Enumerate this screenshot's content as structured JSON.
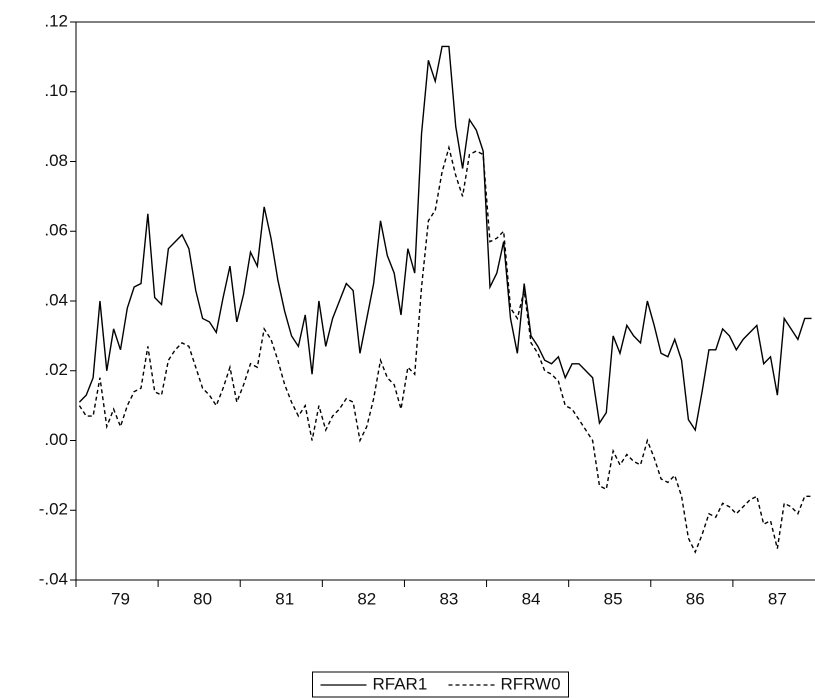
{
  "chart_data": {
    "type": "line",
    "categories": [
      null,
      null,
      null,
      null,
      null,
      null,
      "79",
      null,
      null,
      null,
      null,
      null,
      null,
      null,
      null,
      null,
      null,
      null,
      "80",
      null,
      null,
      null,
      null,
      null,
      null,
      null,
      null,
      null,
      null,
      null,
      "81",
      null,
      null,
      null,
      null,
      null,
      null,
      null,
      null,
      null,
      null,
      null,
      "82",
      null,
      null,
      null,
      null,
      null,
      null,
      null,
      null,
      null,
      null,
      null,
      "83",
      null,
      null,
      null,
      null,
      null,
      null,
      null,
      null,
      null,
      null,
      null,
      "84",
      null,
      null,
      null,
      null,
      null,
      null,
      null,
      null,
      null,
      null,
      null,
      "85",
      null,
      null,
      null,
      null,
      null,
      null,
      null,
      null,
      null,
      null,
      null,
      "86",
      null,
      null,
      null,
      null,
      null,
      null,
      null,
      null,
      null,
      null,
      null,
      "87",
      null,
      null,
      null,
      null,
      null
    ],
    "series": [
      {
        "name": "RFAR1",
        "color": "#000000",
        "dash": "none",
        "values": [
          0.011,
          0.013,
          0.018,
          0.04,
          0.02,
          0.032,
          0.026,
          0.038,
          0.044,
          0.045,
          0.065,
          0.041,
          0.039,
          0.055,
          0.057,
          0.059,
          0.055,
          0.043,
          0.035,
          0.034,
          0.031,
          0.041,
          0.05,
          0.034,
          0.042,
          0.054,
          0.05,
          0.067,
          0.058,
          0.046,
          0.037,
          0.03,
          0.027,
          0.036,
          0.019,
          0.04,
          0.027,
          0.035,
          0.04,
          0.045,
          0.043,
          0.025,
          0.035,
          0.045,
          0.063,
          0.053,
          0.048,
          0.036,
          0.055,
          0.048,
          0.088,
          0.109,
          0.103,
          0.113,
          0.113,
          0.09,
          0.078,
          0.092,
          0.089,
          0.083,
          0.044,
          0.048,
          0.057,
          0.035,
          0.025,
          0.045,
          0.03,
          0.027,
          0.023,
          0.022,
          0.024,
          0.018,
          0.022,
          0.022,
          0.02,
          0.018,
          0.005,
          0.008,
          0.03,
          0.025,
          0.033,
          0.03,
          0.028,
          0.04,
          0.033,
          0.025,
          0.024,
          0.029,
          0.023,
          0.006,
          0.003,
          0.014,
          0.026,
          0.026,
          0.032,
          0.03,
          0.026,
          0.029,
          0.031,
          0.033,
          0.022,
          0.024,
          0.013,
          0.035,
          0.032,
          0.029,
          0.035,
          0.035
        ]
      },
      {
        "name": "RFRW0",
        "color": "#000000",
        "dash": "4 3",
        "values": [
          0.01,
          0.007,
          0.007,
          0.018,
          0.004,
          0.009,
          0.004,
          0.01,
          0.014,
          0.015,
          0.027,
          0.014,
          0.013,
          0.023,
          0.026,
          0.028,
          0.027,
          0.021,
          0.015,
          0.013,
          0.01,
          0.015,
          0.021,
          0.011,
          0.016,
          0.022,
          0.021,
          0.032,
          0.029,
          0.023,
          0.016,
          0.011,
          0.007,
          0.01,
          0.0,
          0.01,
          0.003,
          0.007,
          0.009,
          0.012,
          0.011,
          0.0,
          0.004,
          0.012,
          0.023,
          0.018,
          0.016,
          0.009,
          0.021,
          0.019,
          0.044,
          0.063,
          0.066,
          0.077,
          0.084,
          0.076,
          0.07,
          0.082,
          0.083,
          0.082,
          0.057,
          0.058,
          0.06,
          0.038,
          0.035,
          0.043,
          0.028,
          0.025,
          0.02,
          0.019,
          0.017,
          0.01,
          0.009,
          0.006,
          0.003,
          0.0,
          -0.013,
          -0.014,
          -0.003,
          -0.007,
          -0.004,
          -0.006,
          -0.007,
          0.0,
          -0.005,
          -0.011,
          -0.012,
          -0.01,
          -0.016,
          -0.028,
          -0.032,
          -0.027,
          -0.021,
          -0.022,
          -0.018,
          -0.019,
          -0.021,
          -0.019,
          -0.017,
          -0.016,
          -0.024,
          -0.023,
          -0.031,
          -0.018,
          -0.019,
          -0.021,
          -0.016,
          -0.016
        ]
      }
    ],
    "ylim": [
      -0.04,
      0.12
    ],
    "yticks": [
      {
        "value": -0.04,
        "label": "-.04"
      },
      {
        "value": -0.02,
        "label": "-.02"
      },
      {
        "value": 0,
        "label": ".00"
      },
      {
        "value": 0.02,
        "label": ".02"
      },
      {
        "value": 0.04,
        "label": ".04"
      },
      {
        "value": 0.06,
        "label": ".06"
      },
      {
        "value": 0.08,
        "label": ".08"
      },
      {
        "value": 0.1,
        "label": ".10"
      },
      {
        "value": 0.12,
        "label": ".12"
      }
    ],
    "grid": false,
    "legend": "bottom"
  }
}
